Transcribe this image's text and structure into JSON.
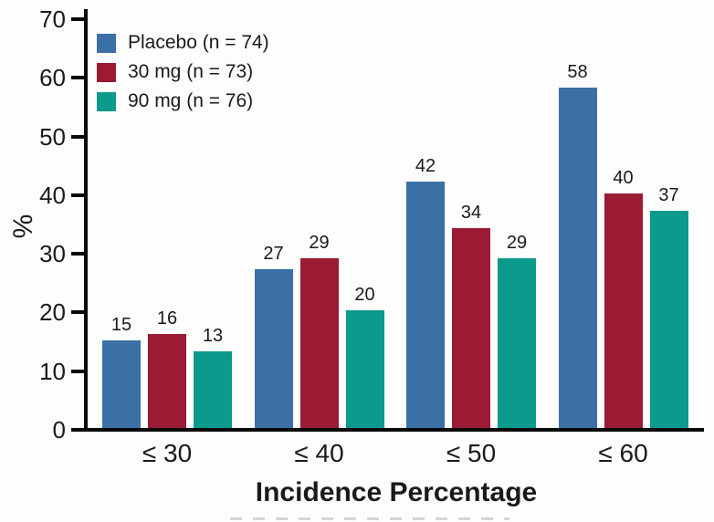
{
  "figure": {
    "background": "#fdfdfd"
  },
  "colors": {
    "axis": "#0a0a0a",
    "text": "#1a1a1a",
    "placebo_blue": "#3b70a6",
    "dose30_red": "#9a1b33",
    "dose90_teal": "#0b9a8c"
  },
  "chart_data": {
    "type": "bar",
    "title": "",
    "xlabel": "Incidence Percentage",
    "ylabel": "%",
    "ylim": [
      0,
      70
    ],
    "yticks": [
      0,
      10,
      20,
      30,
      40,
      50,
      60,
      70
    ],
    "grid": false,
    "legend_position": "top-left",
    "bar_value_labels": true,
    "categories": [
      "≤ 30",
      "≤ 40",
      "≤ 50",
      "≤ 60"
    ],
    "series": [
      {
        "name": "Placebo (n = 74)",
        "color": "#3b70a6",
        "values": [
          15,
          27,
          42,
          58
        ]
      },
      {
        "name": "30 mg (n = 73)",
        "color": "#9a1b33",
        "values": [
          16,
          29,
          34,
          40
        ]
      },
      {
        "name": "90 mg (n = 76)",
        "color": "#0b9a8c",
        "values": [
          13,
          20,
          29,
          37
        ]
      }
    ]
  }
}
